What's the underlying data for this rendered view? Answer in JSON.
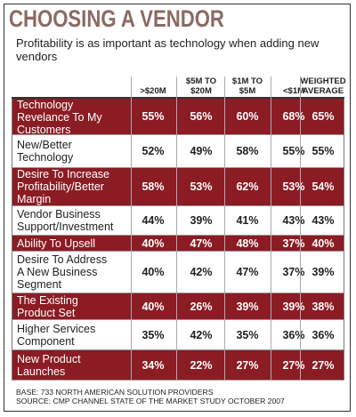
{
  "header": {
    "title": "CHOOSING A VENDOR",
    "subtitle": "Profitability is as important as technology when adding new vendors"
  },
  "chart_data": {
    "type": "table",
    "title": "CHOOSING A VENDOR",
    "subtitle": "Profitability is as important as technology when adding new vendors",
    "columns": [
      [
        ">$20M"
      ],
      [
        "$5M TO",
        "$20M"
      ],
      [
        "$1M TO",
        "$5M"
      ],
      [
        "<$1M"
      ],
      [
        "WEIGHTED",
        "AVERAGE"
      ]
    ],
    "rows": [
      {
        "label": [
          "Technology",
          "Revelance To My",
          "Customers"
        ],
        "values": [
          "55%",
          "56%",
          "60%",
          "68%",
          "65%"
        ],
        "shade": "dark"
      },
      {
        "label": [
          "New/Better",
          "Technology"
        ],
        "values": [
          "52%",
          "49%",
          "58%",
          "55%",
          "55%"
        ],
        "shade": "light"
      },
      {
        "label": [
          "Desire To Increase",
          "Profitability/Better",
          "Margin"
        ],
        "values": [
          "58%",
          "53%",
          "62%",
          "53%",
          "54%"
        ],
        "shade": "dark"
      },
      {
        "label": [
          "Vendor Business",
          "Support/Investment"
        ],
        "values": [
          "44%",
          "39%",
          "41%",
          "43%",
          "43%"
        ],
        "shade": "light"
      },
      {
        "label": [
          "Ability To Upsell"
        ],
        "values": [
          "40%",
          "47%",
          "48%",
          "37%",
          "40%"
        ],
        "shade": "dark"
      },
      {
        "label": [
          "Desire To Address",
          "A New Business",
          "Segment"
        ],
        "values": [
          "40%",
          "42%",
          "47%",
          "37%",
          "39%"
        ],
        "shade": "light"
      },
      {
        "label": [
          "The Existing",
          "Product Set"
        ],
        "values": [
          "40%",
          "26%",
          "39%",
          "39%",
          "38%"
        ],
        "shade": "dark"
      },
      {
        "label": [
          "Higher Services",
          "Component"
        ],
        "values": [
          "35%",
          "42%",
          "35%",
          "36%",
          "36%"
        ],
        "shade": "light"
      },
      {
        "label": [
          "New Product",
          "Launches"
        ],
        "values": [
          "34%",
          "22%",
          "27%",
          "27%",
          "27%"
        ],
        "shade": "dark"
      }
    ]
  },
  "footer": {
    "base": "BASE: 733 NORTH AMERICAN SOLUTION PROVIDERS",
    "source": "SOURCE: CMP CHANNEL STATE OF THE MARKET STUDY OCTOBER 2007"
  },
  "colors": {
    "accent": "#8b1c24",
    "title": "#8b6a62"
  }
}
